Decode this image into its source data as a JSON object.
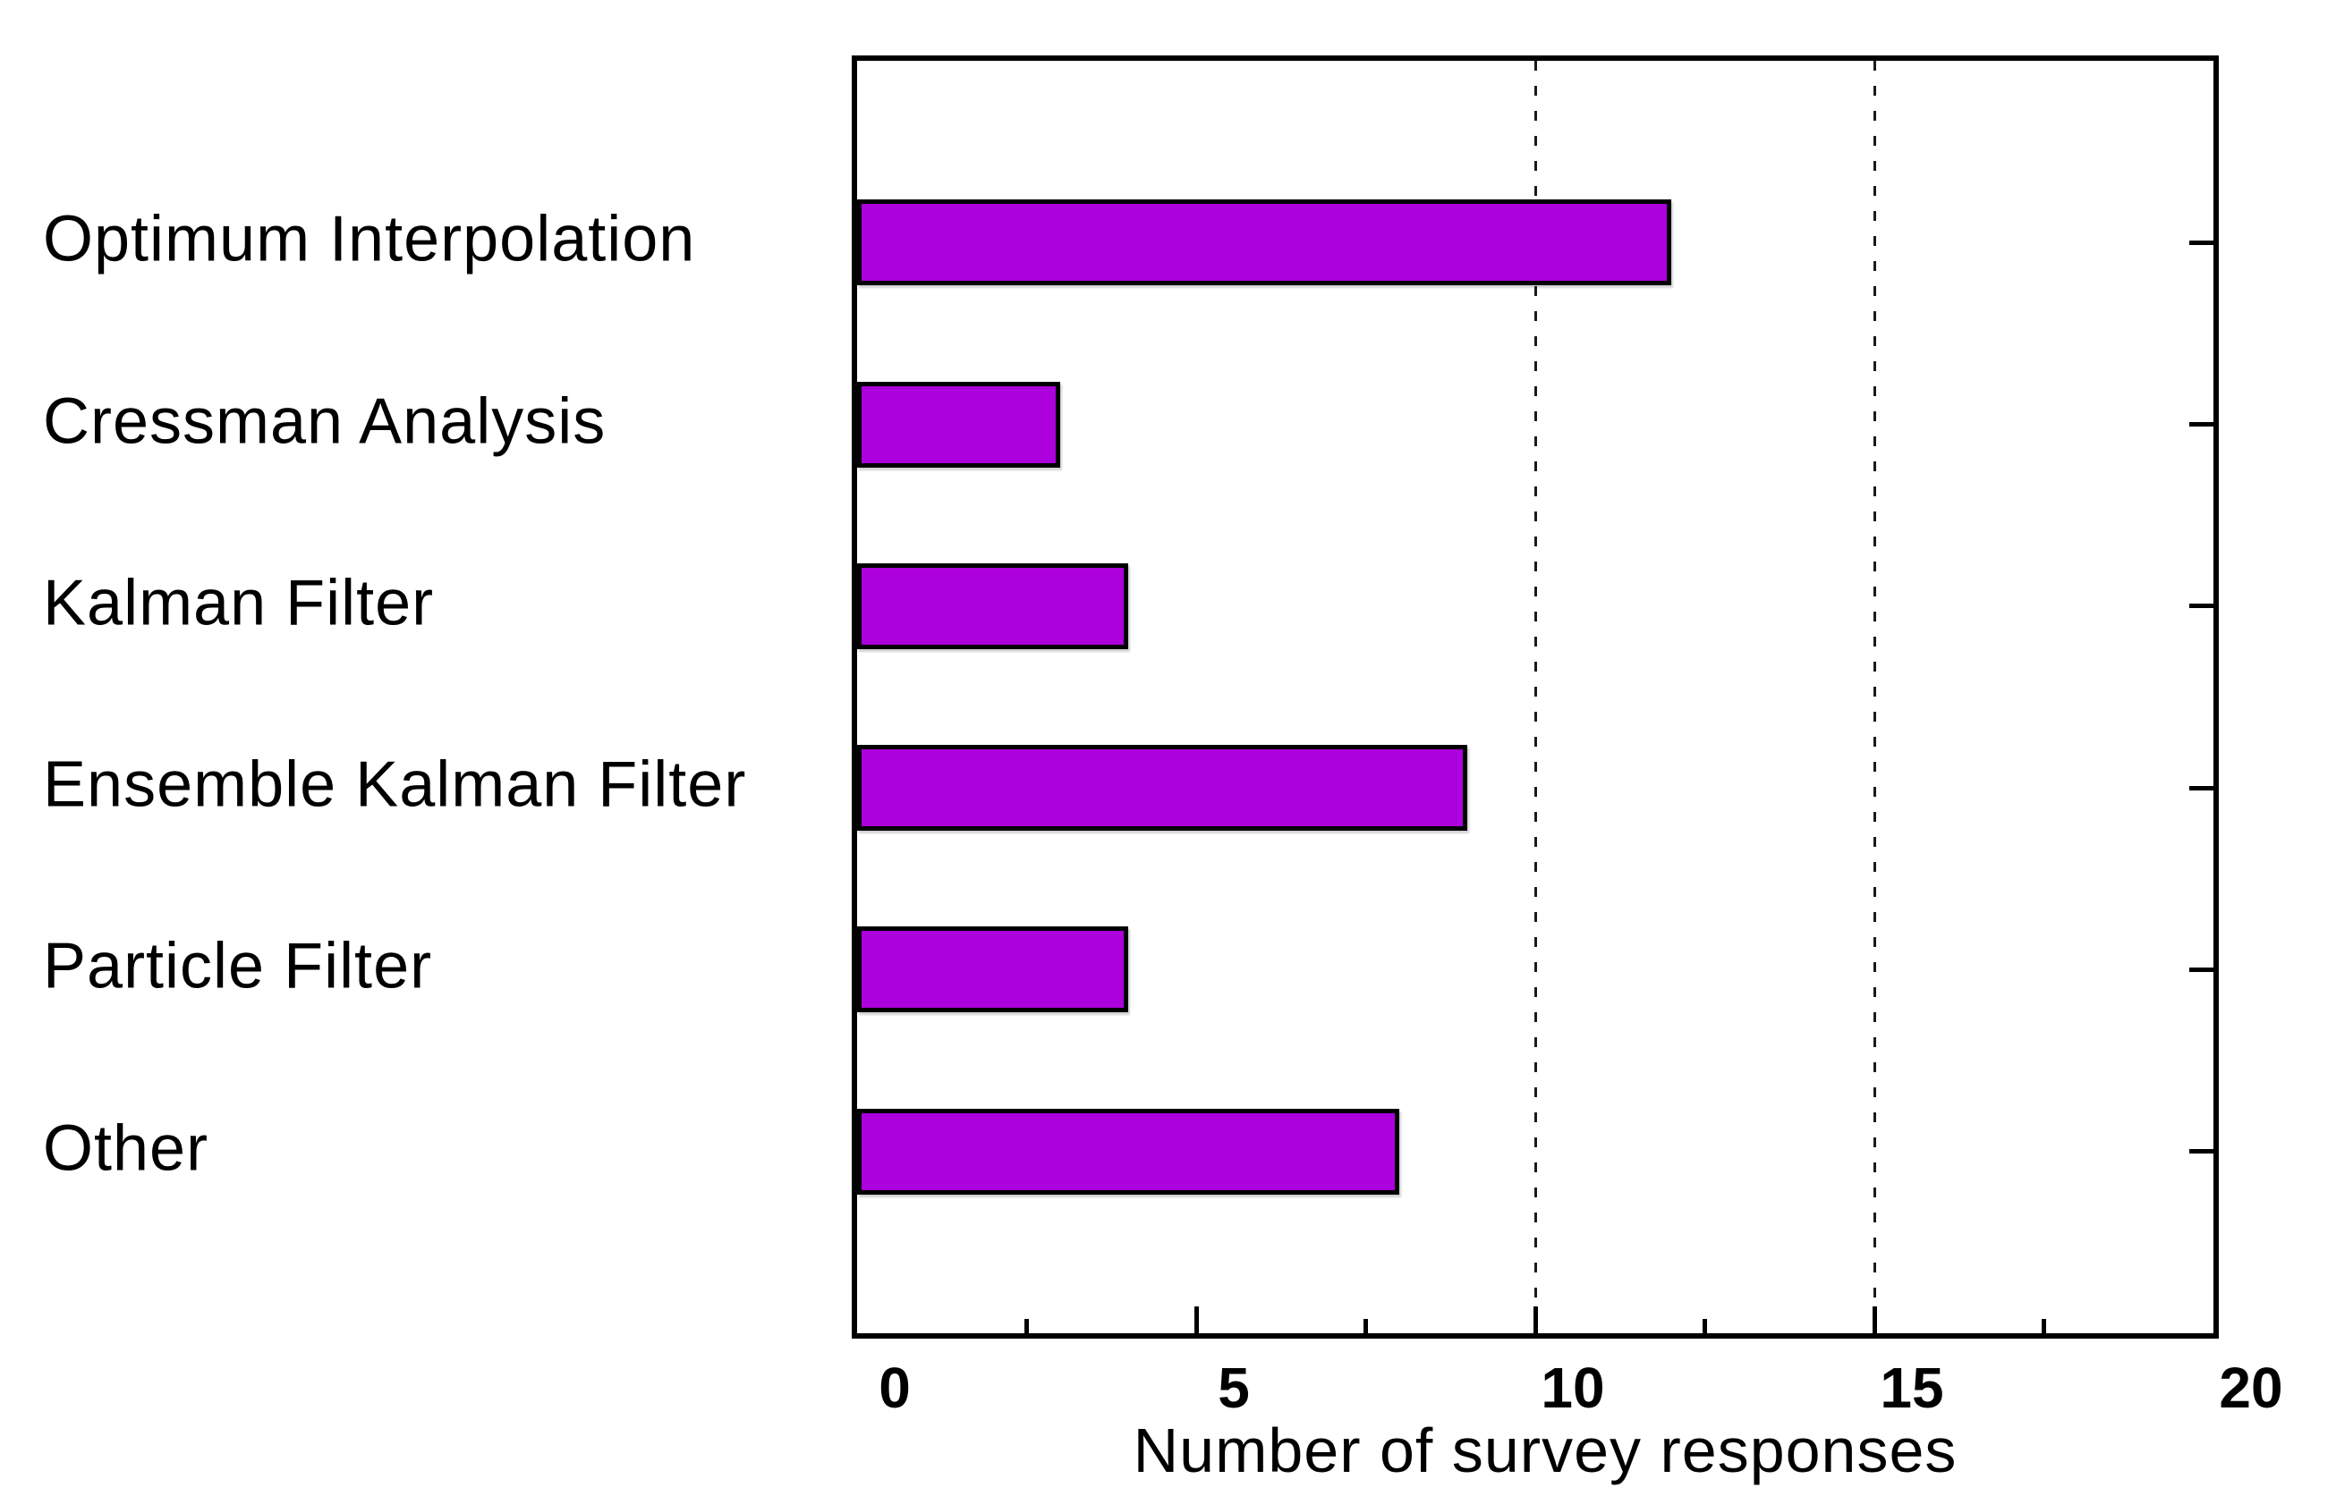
{
  "chart_data": {
    "type": "bar",
    "orientation": "horizontal",
    "title": "",
    "xlabel": "Number of survey responses",
    "ylabel": "",
    "categories": [
      "Optimum Interpolation",
      "Cressman Analysis",
      "Kalman Filter",
      "Ensemble Kalman Filter",
      "Particle Filter",
      "Other"
    ],
    "values": [
      12,
      3,
      4,
      9,
      4,
      8
    ],
    "xlim": [
      0,
      20
    ],
    "xticks_major": [
      0,
      5,
      10,
      15,
      20
    ],
    "xticks_minor": [
      2.5,
      7.5,
      12.5,
      17.5
    ],
    "gridlines_x": [
      10,
      15
    ],
    "grid_style": "dashed",
    "legend_position": "none",
    "colors": {
      "bar_fill": "#AC00DC",
      "bar_border": "#000000",
      "axis": "#000000",
      "text": "#000000",
      "background": "#FFFFFF"
    }
  }
}
